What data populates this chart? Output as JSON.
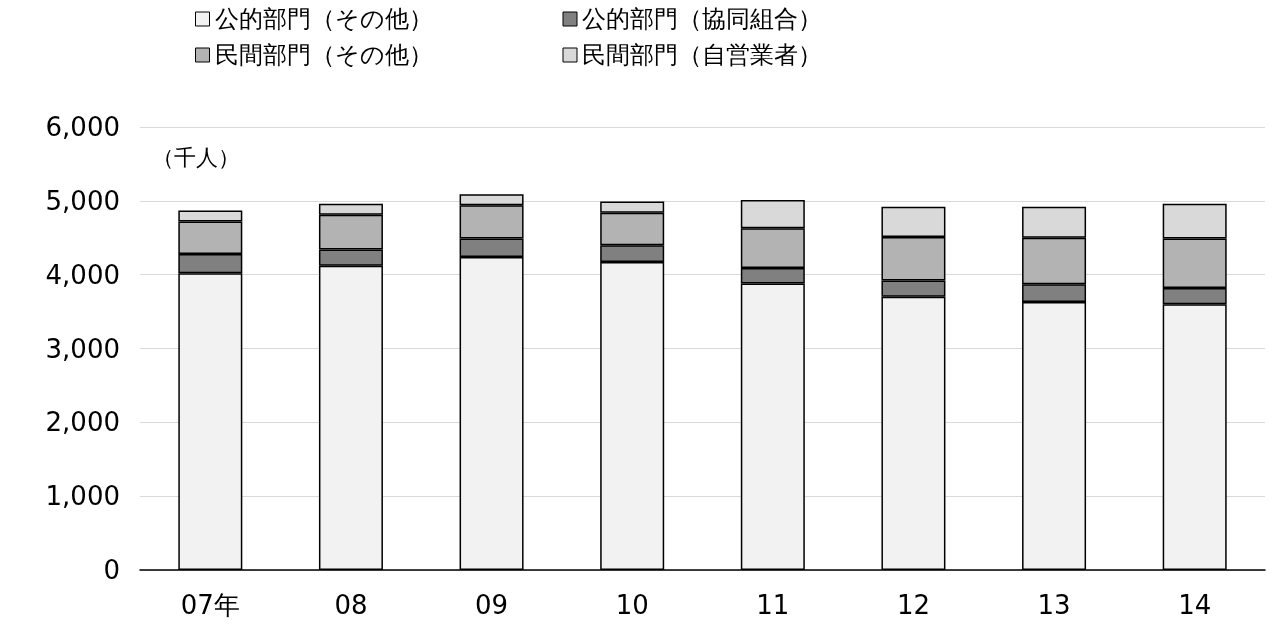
{
  "chart_data": {
    "type": "bar",
    "stacked": true,
    "categories": [
      "07年",
      "08",
      "09",
      "10",
      "11",
      "12",
      "13",
      "14"
    ],
    "series": [
      {
        "name": "公的部門（その他）",
        "color": "#f2f2f2",
        "values": [
          4020,
          4120,
          4240,
          4170,
          3880,
          3700,
          3630,
          3600
        ]
      },
      {
        "name": "公的部門（協同組合）",
        "color": "#808080",
        "values": [
          260,
          220,
          250,
          230,
          210,
          220,
          240,
          220
        ]
      },
      {
        "name": "民間部門（その他）",
        "color": "#b3b3b3",
        "values": [
          440,
          470,
          450,
          440,
          540,
          590,
          630,
          670
        ]
      },
      {
        "name": "民間部門（自営業者）",
        "color": "#d9d9d9",
        "values": [
          150,
          150,
          150,
          150,
          380,
          410,
          420,
          470
        ]
      }
    ],
    "ylim": [
      0,
      6000
    ],
    "yticks": [
      0,
      {
        "value": 1000,
        "label": "1,000"
      },
      {
        "value": 2000,
        "label": "2,000"
      },
      {
        "value": 3000,
        "label": "3,000"
      },
      {
        "value": 4000,
        "label": "4,000"
      },
      {
        "value": 5000,
        "label": "5,000"
      },
      {
        "value": 6000,
        "label": "6,000"
      }
    ],
    "grid": "y",
    "legend": "top",
    "annotations": [
      "（千人）"
    ]
  }
}
